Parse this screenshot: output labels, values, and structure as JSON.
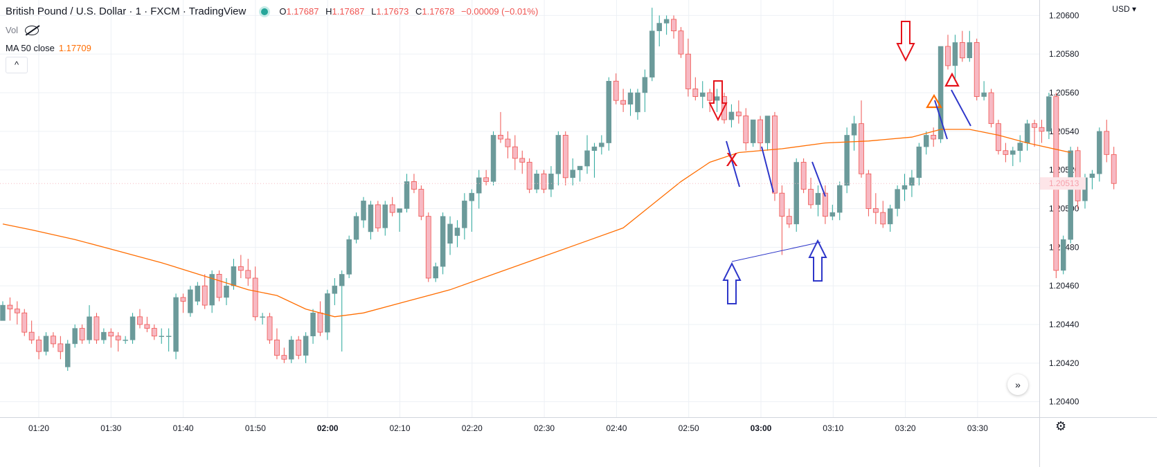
{
  "header": {
    "title": "British Pound / U.S. Dollar · 1 · FXCM · TradingView",
    "ohlc": [
      {
        "k": "O",
        "v": "1.17687"
      },
      {
        "k": "H",
        "v": "1.17687"
      },
      {
        "k": "L",
        "v": "1.17673"
      },
      {
        "k": "C",
        "v": "1.17678"
      }
    ],
    "change": "−0.00009 (−0.01%)"
  },
  "volume": {
    "label": "Vol",
    "icon": "eye-slash-icon"
  },
  "ma": {
    "label": "MA 50 close",
    "value": "1.17709"
  },
  "collapse_icon": "^",
  "currency": "USD ▾",
  "price_tag": "1.20513",
  "colors": {
    "up": "#26a69a",
    "up_body": "#6b9a9a",
    "down": "#ef5350",
    "down_body": "#f7b9c3",
    "ma": "#ff6d00",
    "red_arrow": "#e5121a",
    "blue_arrow": "#2d36c9"
  },
  "chart_data": {
    "type": "candlestick",
    "x_labels": [
      "01:20",
      "01:30",
      "01:40",
      "01:50",
      "02:00",
      "02:10",
      "02:20",
      "02:30",
      "02:40",
      "02:50",
      "03:00",
      "03:10",
      "03:20",
      "03:30"
    ],
    "bold_x_labels": [
      "02:00",
      "03:00"
    ],
    "y_ticks": [
      "1.20600",
      "1.20580",
      "1.20560",
      "1.20540",
      "1.20520",
      "1.20500",
      "1.20480",
      "1.20460",
      "1.20440",
      "1.20420",
      "1.20400"
    ],
    "ylim": [
      1.20392,
      1.20608
    ],
    "candles": [
      [
        1.20442,
        1.20452,
        1.20444,
        1.2045
      ],
      [
        1.2045,
        1.20454,
        1.20442,
        1.20448
      ],
      [
        1.20448,
        1.20452,
        1.2044,
        1.20446
      ],
      [
        1.20446,
        1.20448,
        1.20434,
        1.20436
      ],
      [
        1.20436,
        1.20442,
        1.2043,
        1.20432
      ],
      [
        1.20432,
        1.20434,
        1.20422,
        1.20426
      ],
      [
        1.20426,
        1.20436,
        1.20424,
        1.20434
      ],
      [
        1.20434,
        1.20436,
        1.20428,
        1.2043
      ],
      [
        1.2043,
        1.20434,
        1.20422,
        1.20426
      ],
      [
        1.20418,
        1.20432,
        1.20416,
        1.2043
      ],
      [
        1.2043,
        1.2044,
        1.20428,
        1.20438
      ],
      [
        1.20438,
        1.2044,
        1.2043,
        1.20432
      ],
      [
        1.20432,
        1.2045,
        1.2043,
        1.20444
      ],
      [
        1.20444,
        1.20446,
        1.2043,
        1.20432
      ],
      [
        1.20432,
        1.20438,
        1.2043,
        1.20436
      ],
      [
        1.20436,
        1.20438,
        1.20428,
        1.20434
      ],
      [
        1.20434,
        1.20436,
        1.20426,
        1.20432
      ],
      [
        1.20432,
        1.20434,
        1.2043,
        1.20432
      ],
      [
        1.20432,
        1.20446,
        1.2043,
        1.20444
      ],
      [
        1.20444,
        1.20448,
        1.20438,
        1.2044
      ],
      [
        1.2044,
        1.20444,
        1.20436,
        1.20438
      ],
      [
        1.20438,
        1.2044,
        1.20432,
        1.20434
      ],
      [
        1.20434,
        1.20438,
        1.2043,
        1.20434
      ],
      [
        1.20434,
        1.20438,
        1.20426,
        1.20434
      ],
      [
        1.20426,
        1.20456,
        1.20422,
        1.20454
      ],
      [
        1.20454,
        1.20456,
        1.20446,
        1.20452
      ],
      [
        1.20446,
        1.2046,
        1.20444,
        1.20458
      ],
      [
        1.20452,
        1.20462,
        1.2045,
        1.2046
      ],
      [
        1.2046,
        1.20466,
        1.20448,
        1.2045
      ],
      [
        1.2045,
        1.20468,
        1.20446,
        1.20466
      ],
      [
        1.20466,
        1.20468,
        1.20452,
        1.20454
      ],
      [
        1.20454,
        1.20464,
        1.2045,
        1.2046
      ],
      [
        1.2046,
        1.20474,
        1.20458,
        1.2047
      ],
      [
        1.2047,
        1.20476,
        1.20464,
        1.20468
      ],
      [
        1.20468,
        1.20474,
        1.2046,
        1.20464
      ],
      [
        1.20464,
        1.2047,
        1.20442,
        1.20444
      ],
      [
        1.20444,
        1.20446,
        1.2044,
        1.20444
      ],
      [
        1.20444,
        1.20446,
        1.2043,
        1.20432
      ],
      [
        1.20432,
        1.20438,
        1.20422,
        1.20424
      ],
      [
        1.20424,
        1.20428,
        1.2042,
        1.20422
      ],
      [
        1.20422,
        1.20434,
        1.2042,
        1.20432
      ],
      [
        1.20432,
        1.20434,
        1.20422,
        1.20424
      ],
      [
        1.20424,
        1.20436,
        1.2042,
        1.20434
      ],
      [
        1.20434,
        1.20448,
        1.2043,
        1.20446
      ],
      [
        1.20446,
        1.20452,
        1.20434,
        1.20436
      ],
      [
        1.20436,
        1.20458,
        1.20432,
        1.20456
      ],
      [
        1.20456,
        1.20464,
        1.2045,
        1.2046
      ],
      [
        1.2046,
        1.20468,
        1.20426,
        1.20466
      ],
      [
        1.20466,
        1.20486,
        1.20464,
        1.20484
      ],
      [
        1.20484,
        1.20498,
        1.20482,
        1.20496
      ],
      [
        1.20494,
        1.20506,
        1.2049,
        1.20504
      ],
      [
        1.20488,
        1.20504,
        1.20484,
        1.20502
      ],
      [
        1.20502,
        1.20504,
        1.20488,
        1.2049
      ],
      [
        1.2049,
        1.20504,
        1.20486,
        1.20502
      ],
      [
        1.20502,
        1.20506,
        1.20496,
        1.20498
      ],
      [
        1.20498,
        1.205,
        1.20488,
        1.205
      ],
      [
        1.205,
        1.20518,
        1.20498,
        1.20514
      ],
      [
        1.20514,
        1.20518,
        1.20508,
        1.2051
      ],
      [
        1.2051,
        1.20512,
        1.20494,
        1.20496
      ],
      [
        1.20496,
        1.20498,
        1.20462,
        1.20464
      ],
      [
        1.20464,
        1.20472,
        1.20462,
        1.2047
      ],
      [
        1.2047,
        1.20498,
        1.20466,
        1.20496
      ],
      [
        1.20482,
        1.20496,
        1.20476,
        1.20492
      ],
      [
        1.20486,
        1.20494,
        1.2048,
        1.2049
      ],
      [
        1.2049,
        1.20508,
        1.20484,
        1.20504
      ],
      [
        1.20504,
        1.2051,
        1.20488,
        1.20508
      ],
      [
        1.20508,
        1.2052,
        1.205,
        1.20516
      ],
      [
        1.20516,
        1.2052,
        1.20512,
        1.20514
      ],
      [
        1.20514,
        1.2054,
        1.20512,
        1.20538
      ],
      [
        1.20538,
        1.2055,
        1.20534,
        1.20536
      ],
      [
        1.20536,
        1.2054,
        1.20526,
        1.20532
      ],
      [
        1.20532,
        1.20538,
        1.2052,
        1.20526
      ],
      [
        1.20526,
        1.2053,
        1.20518,
        1.20524
      ],
      [
        1.20524,
        1.20526,
        1.20508,
        1.2051
      ],
      [
        1.2051,
        1.2052,
        1.20508,
        1.20518
      ],
      [
        1.20518,
        1.2052,
        1.20508,
        1.2051
      ],
      [
        1.2051,
        1.20522,
        1.20506,
        1.20518
      ],
      [
        1.20518,
        1.2054,
        1.20512,
        1.20538
      ],
      [
        1.20538,
        1.2054,
        1.20512,
        1.20516
      ],
      [
        1.20516,
        1.20526,
        1.20512,
        1.2052
      ],
      [
        1.2052,
        1.20522,
        1.20514,
        1.20522
      ],
      [
        1.20522,
        1.20538,
        1.20518,
        1.2053
      ],
      [
        1.2053,
        1.20534,
        1.20516,
        1.20532
      ],
      [
        1.20532,
        1.20538,
        1.20528,
        1.20534
      ],
      [
        1.20534,
        1.20568,
        1.2053,
        1.20566
      ],
      [
        1.20566,
        1.2057,
        1.20554,
        1.20556
      ],
      [
        1.20556,
        1.20562,
        1.2055,
        1.20554
      ],
      [
        1.20554,
        1.20562,
        1.20548,
        1.2056
      ],
      [
        1.2055,
        1.20562,
        1.20546,
        1.2056
      ],
      [
        1.2056,
        1.20572,
        1.2055,
        1.20568
      ],
      [
        1.20568,
        1.20604,
        1.20566,
        1.20592
      ],
      [
        1.20592,
        1.206,
        1.20584,
        1.20596
      ],
      [
        1.20596,
        1.206,
        1.2059,
        1.20598
      ],
      [
        1.20598,
        1.206,
        1.20588,
        1.20592
      ],
      [
        1.20592,
        1.20594,
        1.20578,
        1.2058
      ],
      [
        1.2058,
        1.20588,
        1.20558,
        1.20562
      ],
      [
        1.20562,
        1.20568,
        1.20556,
        1.20558
      ],
      [
        1.20558,
        1.20566,
        1.20552,
        1.2056
      ],
      [
        1.2056,
        1.20562,
        1.2055,
        1.20556
      ],
      [
        1.20556,
        1.20562,
        1.2055,
        1.20558
      ],
      [
        1.20558,
        1.2056,
        1.20544,
        1.20546
      ],
      [
        1.20546,
        1.20554,
        1.20542,
        1.2055
      ],
      [
        1.2055,
        1.20556,
        1.20544,
        1.20548
      ],
      [
        1.20548,
        1.20552,
        1.2053,
        1.20534
      ],
      [
        1.20534,
        1.20546,
        1.20532,
        1.20546
      ],
      [
        1.20546,
        1.20548,
        1.2053,
        1.20534
      ],
      [
        1.20534,
        1.20548,
        1.2053,
        1.20548
      ],
      [
        1.20548,
        1.2055,
        1.20504,
        1.20508
      ],
      [
        1.20508,
        1.20512,
        1.20476,
        1.20496
      ],
      [
        1.20496,
        1.205,
        1.2049,
        1.20492
      ],
      [
        1.20492,
        1.20526,
        1.20488,
        1.20524
      ],
      [
        1.20524,
        1.20526,
        1.20508,
        1.2051
      ],
      [
        1.2051,
        1.20516,
        1.205,
        1.20502
      ],
      [
        1.20502,
        1.20512,
        1.20496,
        1.20508
      ],
      [
        1.20508,
        1.20512,
        1.20492,
        1.20496
      ],
      [
        1.20496,
        1.20502,
        1.20494,
        1.20498
      ],
      [
        1.20498,
        1.20514,
        1.20494,
        1.20512
      ],
      [
        1.20512,
        1.20542,
        1.20508,
        1.20538
      ],
      [
        1.20538,
        1.20548,
        1.2053,
        1.20544
      ],
      [
        1.20544,
        1.20556,
        1.20516,
        1.20518
      ],
      [
        1.20518,
        1.2052,
        1.20496,
        1.205
      ],
      [
        1.205,
        1.20508,
        1.20492,
        1.20498
      ],
      [
        1.20498,
        1.20504,
        1.2049,
        1.20492
      ],
      [
        1.20492,
        1.20502,
        1.20488,
        1.205
      ],
      [
        1.205,
        1.20512,
        1.20496,
        1.2051
      ],
      [
        1.2051,
        1.20518,
        1.20504,
        1.20512
      ],
      [
        1.20512,
        1.2052,
        1.20506,
        1.20516
      ],
      [
        1.20516,
        1.20534,
        1.20512,
        1.20532
      ],
      [
        1.20532,
        1.2054,
        1.20528,
        1.20538
      ],
      [
        1.20538,
        1.20542,
        1.20532,
        1.20536
      ],
      [
        1.20536,
        1.20584,
        1.20534,
        1.20584
      ],
      [
        1.20584,
        1.2059,
        1.20572,
        1.20574
      ],
      [
        1.20574,
        1.2059,
        1.20566,
        1.20586
      ],
      [
        1.20586,
        1.20592,
        1.20576,
        1.20578
      ],
      [
        1.20578,
        1.20592,
        1.20576,
        1.20586
      ],
      [
        1.20586,
        1.20588,
        1.20556,
        1.20558
      ],
      [
        1.20558,
        1.20566,
        1.20556,
        1.2056
      ],
      [
        1.2056,
        1.20562,
        1.20542,
        1.20544
      ],
      [
        1.20544,
        1.20546,
        1.20528,
        1.2053
      ],
      [
        1.2053,
        1.20534,
        1.20524,
        1.20528
      ],
      [
        1.20528,
        1.20532,
        1.20522,
        1.2053
      ],
      [
        1.2053,
        1.20538,
        1.20524,
        1.20534
      ],
      [
        1.20534,
        1.20546,
        1.2053,
        1.20544
      ],
      [
        1.20544,
        1.20546,
        1.20532,
        1.20542
      ],
      [
        1.20542,
        1.20546,
        1.20534,
        1.2054
      ],
      [
        1.2054,
        1.2056,
        1.20536,
        1.20558
      ],
      [
        1.20558,
        1.2056,
        1.20464,
        1.20468
      ],
      [
        1.20468,
        1.20486,
        1.20466,
        1.20484
      ],
      [
        1.20484,
        1.20532,
        1.20482,
        1.2053
      ],
      [
        1.2053,
        1.20532,
        1.205,
        1.20504
      ],
      [
        1.20504,
        1.20518,
        1.205,
        1.20516
      ],
      [
        1.20516,
        1.2052,
        1.2051,
        1.20518
      ],
      [
        1.20518,
        1.20542,
        1.20514,
        1.2054
      ],
      [
        1.2054,
        1.20546,
        1.20524,
        1.20528
      ],
      [
        1.20528,
        1.20532,
        1.2051,
        1.20513
      ]
    ],
    "ma50": [
      [
        0,
        1.20492
      ],
      [
        4,
        1.20489
      ],
      [
        10,
        1.20484
      ],
      [
        16,
        1.20478
      ],
      [
        22,
        1.20472
      ],
      [
        28,
        1.20465
      ],
      [
        34,
        1.20458
      ],
      [
        38,
        1.20455
      ],
      [
        42,
        1.20448
      ],
      [
        46,
        1.20444
      ],
      [
        50,
        1.20446
      ],
      [
        56,
        1.20452
      ],
      [
        62,
        1.20458
      ],
      [
        68,
        1.20466
      ],
      [
        74,
        1.20474
      ],
      [
        80,
        1.20482
      ],
      [
        86,
        1.2049
      ],
      [
        90,
        1.20502
      ],
      [
        94,
        1.20514
      ],
      [
        98,
        1.20524
      ],
      [
        102,
        1.20529
      ],
      [
        108,
        1.20531
      ],
      [
        114,
        1.20534
      ],
      [
        120,
        1.20535
      ],
      [
        126,
        1.20537
      ],
      [
        130,
        1.20541
      ],
      [
        134,
        1.20541
      ],
      [
        138,
        1.20538
      ],
      [
        142,
        1.20534
      ],
      [
        148,
        1.20529
      ]
    ]
  },
  "annotations": {
    "x_mark": "X"
  }
}
